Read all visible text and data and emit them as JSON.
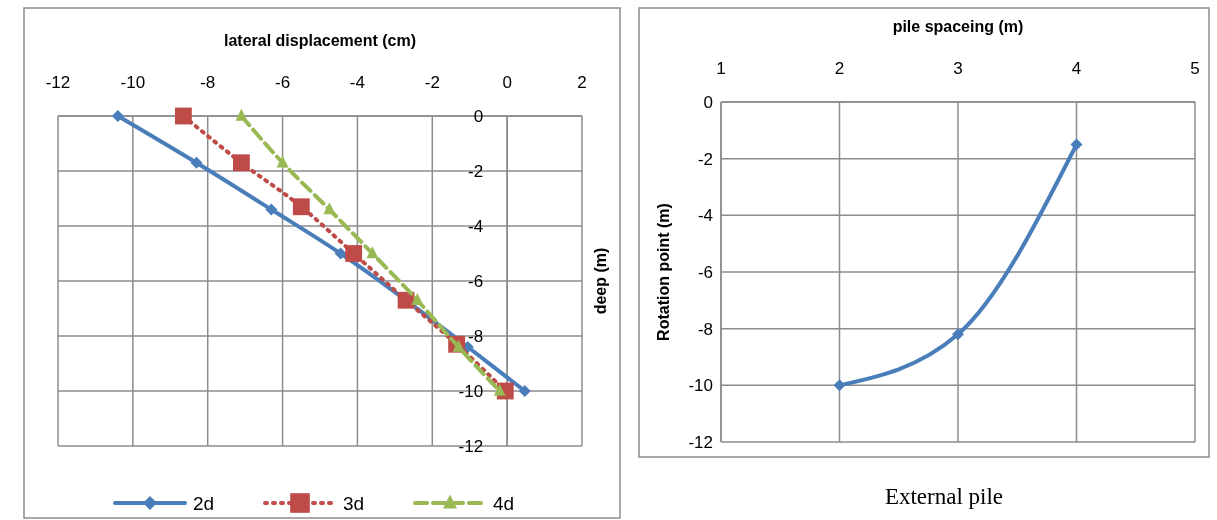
{
  "chart_data": [
    {
      "type": "line",
      "xlabel": "lateral displacement (cm)",
      "ylabel": "deep (m)",
      "xlim": [
        -12,
        2
      ],
      "xticks": [
        -12,
        -10,
        -8,
        -6,
        -4,
        -2,
        0,
        2
      ],
      "ylim": [
        -12,
        0
      ],
      "yticks": [
        -12,
        -10,
        -8,
        -6,
        -4,
        -2,
        0
      ],
      "grid": true,
      "legend": "bottom",
      "series": [
        {
          "name": "2d",
          "color": "#4a7ebb",
          "marker": "diamond",
          "line_style": "solid",
          "x": [
            -10.4,
            -8.3,
            -6.3,
            -4.45,
            -2.7,
            -1.05,
            0.47
          ],
          "values": [
            0,
            -1.7,
            -3.4,
            -5,
            null,
            -8.4,
            -10
          ]
        },
        {
          "name": "3d",
          "color": "#be4b48",
          "marker": "square",
          "line_style": "dotted",
          "x": [
            -8.65,
            -7.1,
            -5.5,
            -4.1,
            -2.7,
            -1.35,
            -0.05
          ],
          "values": [
            0,
            -1.7,
            -3.3,
            -5,
            -6.7,
            -8.3,
            -10
          ]
        },
        {
          "name": "4d",
          "color": "#98b954",
          "marker": "triangle",
          "line_style": "dashed",
          "x": [
            -7.1,
            -6.0,
            -4.75,
            -3.6,
            -2.4,
            -1.3,
            -0.2
          ],
          "values": [
            0,
            -1.7,
            -3.4,
            -5,
            -6.7,
            -8.4,
            -10
          ]
        }
      ]
    },
    {
      "type": "line",
      "xlabel": "pile spaceing (m)",
      "ylabel": "Rotation point (m)",
      "xlim": [
        1,
        5
      ],
      "xticks": [
        1,
        2,
        3,
        4,
        5
      ],
      "ylim": [
        -12,
        0
      ],
      "yticks": [
        -12,
        -10,
        -8,
        -6,
        -4,
        -2,
        0
      ],
      "grid": true,
      "marker": "diamond",
      "annotations": [
        "External pile"
      ],
      "series": [
        {
          "color": "#4a7ebb",
          "x": [
            2,
            3,
            4
          ],
          "values": [
            -10,
            -8.2,
            -1.5
          ]
        }
      ]
    }
  ]
}
